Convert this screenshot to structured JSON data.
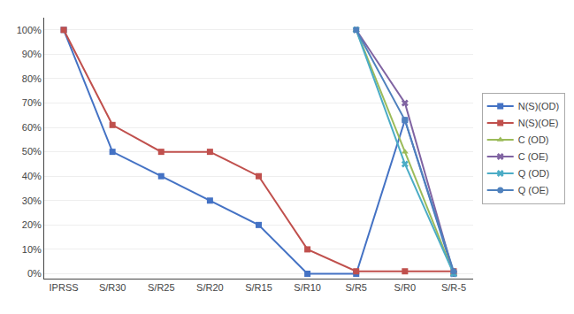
{
  "chart_data": {
    "type": "line",
    "categories": [
      "IPRSS",
      "S/R30",
      "S/R25",
      "S/R20",
      "S/R15",
      "S/R10",
      "S/R5",
      "S/R0",
      "S/R-5"
    ],
    "series": [
      {
        "name": "N(S)(OD)",
        "color": "#4472C4",
        "marker": "square",
        "values": [
          100,
          50,
          40,
          30,
          20,
          0,
          0,
          63,
          0
        ]
      },
      {
        "name": "N(S)(OE)",
        "color": "#C0504D",
        "marker": "square",
        "values": [
          100,
          61,
          50,
          50,
          40,
          10,
          1,
          1,
          1
        ]
      },
      {
        "name": "C (OD)",
        "color": "#9BBB59",
        "marker": "triangle-up",
        "values": [
          null,
          null,
          null,
          null,
          null,
          null,
          100,
          50,
          0
        ]
      },
      {
        "name": "C (OE)",
        "color": "#8064A2",
        "marker": "x",
        "values": [
          null,
          null,
          null,
          null,
          null,
          null,
          100,
          70,
          0
        ]
      },
      {
        "name": "Q (OD)",
        "color": "#4BACC6",
        "marker": "x",
        "values": [
          null,
          null,
          null,
          null,
          null,
          null,
          100,
          45,
          0
        ]
      },
      {
        "name": "Q (OE)",
        "color": "#4F81BD",
        "marker": "circle",
        "values": [
          null,
          null,
          null,
          null,
          null,
          null,
          100,
          63,
          1
        ]
      }
    ],
    "ylim": [
      -2,
      105
    ],
    "yticks": [
      {
        "value": 0,
        "label": "0%"
      },
      {
        "value": 10,
        "label": "10%"
      },
      {
        "value": 20,
        "label": "20%"
      },
      {
        "value": 30,
        "label": "30%"
      },
      {
        "value": 40,
        "label": "40%"
      },
      {
        "value": 50,
        "label": "50%"
      },
      {
        "value": 60,
        "label": "60%"
      },
      {
        "value": 70,
        "label": "70%"
      },
      {
        "value": 80,
        "label": "80%"
      },
      {
        "value": 90,
        "label": "90%"
      },
      {
        "value": 100,
        "label": "100%"
      }
    ],
    "grid": "y",
    "legend": "right"
  }
}
